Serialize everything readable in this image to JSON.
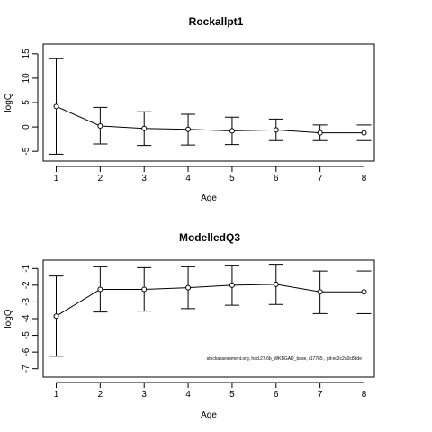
{
  "chart_data": [
    {
      "type": "line",
      "title": "Rockallpt1",
      "xlabel": "Age",
      "ylabel": "logQ",
      "x": [
        1,
        2,
        3,
        4,
        5,
        6,
        7,
        8
      ],
      "xticks": [
        "1",
        "2",
        "3",
        "4",
        "5",
        "6",
        "7",
        "8"
      ],
      "yticks": [
        "-5",
        "0",
        "5",
        "10",
        "15"
      ],
      "ylim": [
        -7,
        17
      ],
      "series": [
        {
          "values": [
            4.2,
            0.2,
            -0.3,
            -0.5,
            -0.8,
            -0.6,
            -1.2,
            -1.2
          ],
          "lower": [
            -5.6,
            -3.5,
            -3.8,
            -3.7,
            -3.6,
            -2.8,
            -2.8,
            -2.8
          ],
          "upper": [
            14.0,
            4.0,
            3.1,
            2.6,
            2.0,
            1.6,
            0.4,
            0.4
          ]
        }
      ],
      "grid": false,
      "error_bars": true
    },
    {
      "type": "line",
      "title": "ModelledQ3",
      "xlabel": "Age",
      "ylabel": "logQ",
      "x": [
        1,
        2,
        3,
        4,
        5,
        6,
        7,
        8
      ],
      "xticks": [
        "1",
        "2",
        "3",
        "4",
        "5",
        "6",
        "7",
        "8"
      ],
      "yticks": [
        "-7",
        "-6",
        "-5",
        "-4",
        "-3",
        "-2",
        "-1"
      ],
      "ylim": [
        -7.5,
        -0.5
      ],
      "series": [
        {
          "values": [
            -3.85,
            -2.25,
            -2.25,
            -2.15,
            -2.0,
            -1.95,
            -2.4,
            -2.4
          ],
          "lower": [
            -6.25,
            -3.6,
            -3.55,
            -3.4,
            -3.2,
            -3.15,
            -3.7,
            -3.7
          ],
          "upper": [
            -1.45,
            -0.9,
            -0.95,
            -0.9,
            -0.8,
            -0.75,
            -1.15,
            -1.15
          ]
        }
      ],
      "grid": false,
      "error_bars": true
    }
  ],
  "footnote": "stockassessment.org, had.27.6b_WKBGAD_base, r17765 , git:ec2c2a0c8dde"
}
